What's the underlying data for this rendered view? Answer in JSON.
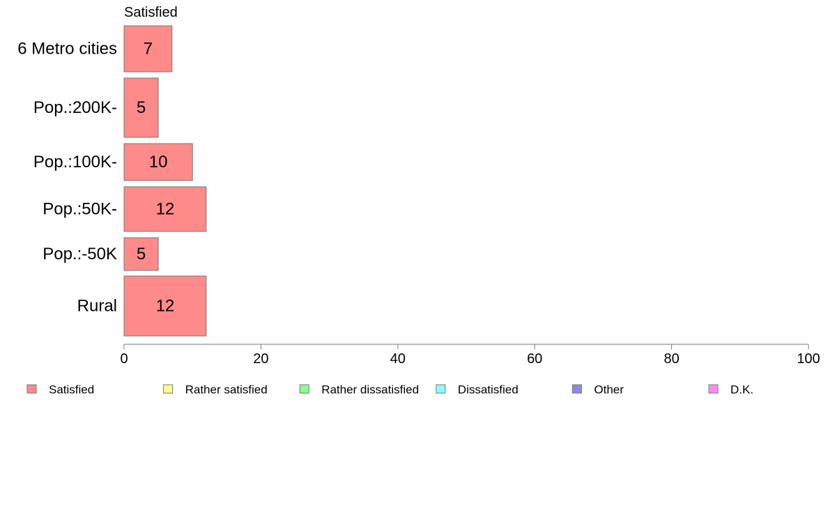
{
  "chart_data": {
    "type": "bar",
    "orientation": "horizontal",
    "series_title": "Satisfied",
    "categories": [
      "6 Metro cities",
      "Pop.:200K-",
      "Pop.:100K-",
      "Pop.:50K-",
      "Pop.:-50K",
      "Rural"
    ],
    "series": [
      {
        "name": "Satisfied",
        "values": [
          7,
          5,
          10,
          12,
          5,
          12
        ],
        "color": "#ff8a8a"
      }
    ],
    "value_labels": [
      "7",
      "5",
      "10",
      "12",
      "5",
      "12"
    ],
    "xlim": [
      0,
      100
    ],
    "x_ticks": [
      0,
      20,
      40,
      60,
      80,
      100
    ],
    "grid": false,
    "legend_position": "bottom",
    "legend": [
      {
        "label": "Satisfied",
        "color": "#ff8a8a"
      },
      {
        "label": "Rather satisfied",
        "color": "#ffff8a"
      },
      {
        "label": "Rather dissatisfied",
        "color": "#8aff8a"
      },
      {
        "label": "Dissatisfied",
        "color": "#8affff"
      },
      {
        "label": "Other",
        "color": "#8a8ae6"
      },
      {
        "label": "D.K.",
        "color": "#ff8aff"
      }
    ]
  }
}
